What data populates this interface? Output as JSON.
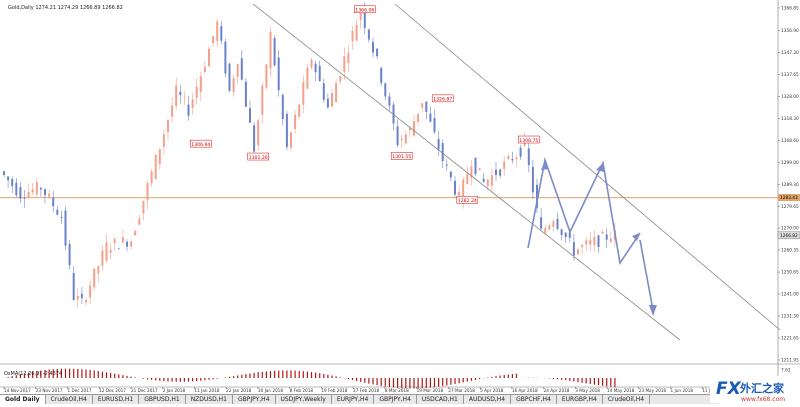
{
  "window": {
    "symbol_info": "Gold,Daily  1274.21 1274.29 1266.89 1266.82"
  },
  "oscillator_label": "OsMA(12,26,9) -2.4374",
  "price_scale": [
    {
      "label": "1366.85",
      "price": 1366.85
    },
    {
      "label": "1356.90",
      "price": 1356.9
    },
    {
      "label": "1347.30",
      "price": 1347.3
    },
    {
      "label": "1337.65",
      "price": 1337.65
    },
    {
      "label": "1328.00",
      "price": 1328.0
    },
    {
      "label": "1318.30",
      "price": 1318.3
    },
    {
      "label": "1308.60",
      "price": 1308.6
    },
    {
      "label": "1299.00",
      "price": 1299.0
    },
    {
      "label": "1289.30",
      "price": 1289.3
    },
    {
      "label": "1279.65",
      "price": 1279.65
    },
    {
      "label": "1270.00",
      "price": 1270.0
    },
    {
      "label": "1260.35",
      "price": 1260.35
    },
    {
      "label": "1250.65",
      "price": 1250.65
    },
    {
      "label": "1241.00",
      "price": 1241.0
    },
    {
      "label": "1231.30",
      "price": 1231.3
    },
    {
      "label": "1221.65",
      "price": 1221.65
    },
    {
      "label": "1211.95",
      "price": 1211.95
    }
  ],
  "osc_scale": [
    "7.62",
    "0.00",
    "-9.80"
  ],
  "current_price": {
    "label": "1266.82",
    "price": 1266.82
  },
  "horizontal_line": {
    "label": "1283.43",
    "price": 1283.43
  },
  "time_labels": [
    "14 Nov 2017",
    "23 Nov 2017",
    "1 Dec 2017",
    "12 Dec 2017",
    "21 Dec 2017",
    "2 Jan 2018",
    "11 Jan 2018",
    "22 Jan 2018",
    "30 Jan 2018",
    "8 Feb 2018",
    "19 Feb 2018",
    "27 Feb 2018",
    "8 Mar 2018",
    "19 Mar 2018",
    "27 Mar 2018",
    "5 Apr 2018",
    "16 Apr 2018",
    "24 Apr 2018",
    "3 May 2018",
    "14 May 2018",
    "23 May 2018",
    "1 Jun 2018",
    "11 Jun 2018",
    "20 Jun 2018"
  ],
  "price_labels": [
    {
      "text": "1366.06",
      "bar": 88
    },
    {
      "text": "1326.87",
      "bar": 107
    },
    {
      "text": "1306.94",
      "bar": 48
    },
    {
      "text": "1301.26",
      "bar": 62
    },
    {
      "text": "1301.55",
      "bar": 97
    },
    {
      "text": "1308.75",
      "bar": 128
    },
    {
      "text": "1282.24",
      "bar": 113
    }
  ],
  "tabs": [
    {
      "label": "Gold Daily",
      "active": true
    },
    {
      "label": "CrudeOil,H4",
      "active": false
    },
    {
      "label": "EURUSD,H1",
      "active": false
    },
    {
      "label": "GBPUSD,H1",
      "active": false
    },
    {
      "label": "NZDUSD,H1",
      "active": false
    },
    {
      "label": "GBPJPY,H4",
      "active": false
    },
    {
      "label": "USDJPY,Weekly",
      "active": false
    },
    {
      "label": "EURJPY,H4",
      "active": false
    },
    {
      "label": "GBPJPY,H4",
      "active": false
    },
    {
      "label": "USDCAD,H1",
      "active": false
    },
    {
      "label": "AUDUSD,H4",
      "active": false
    },
    {
      "label": "GBPCHF,H4",
      "active": false
    },
    {
      "label": "EURGBP,H4",
      "active": false
    },
    {
      "label": "CrudeOil,H4",
      "active": false
    }
  ],
  "logo": {
    "fx": "FX",
    "cn": "外汇之家",
    "url": "www.fx68.com"
  },
  "colors": {
    "bull": "#f4a08a",
    "bear": "#6a82c8",
    "hline": "#e0a46a",
    "channel": "#888888",
    "annotation": "#7b8cc9",
    "label_border": "#e00000",
    "osma": "#b01818"
  }
}
